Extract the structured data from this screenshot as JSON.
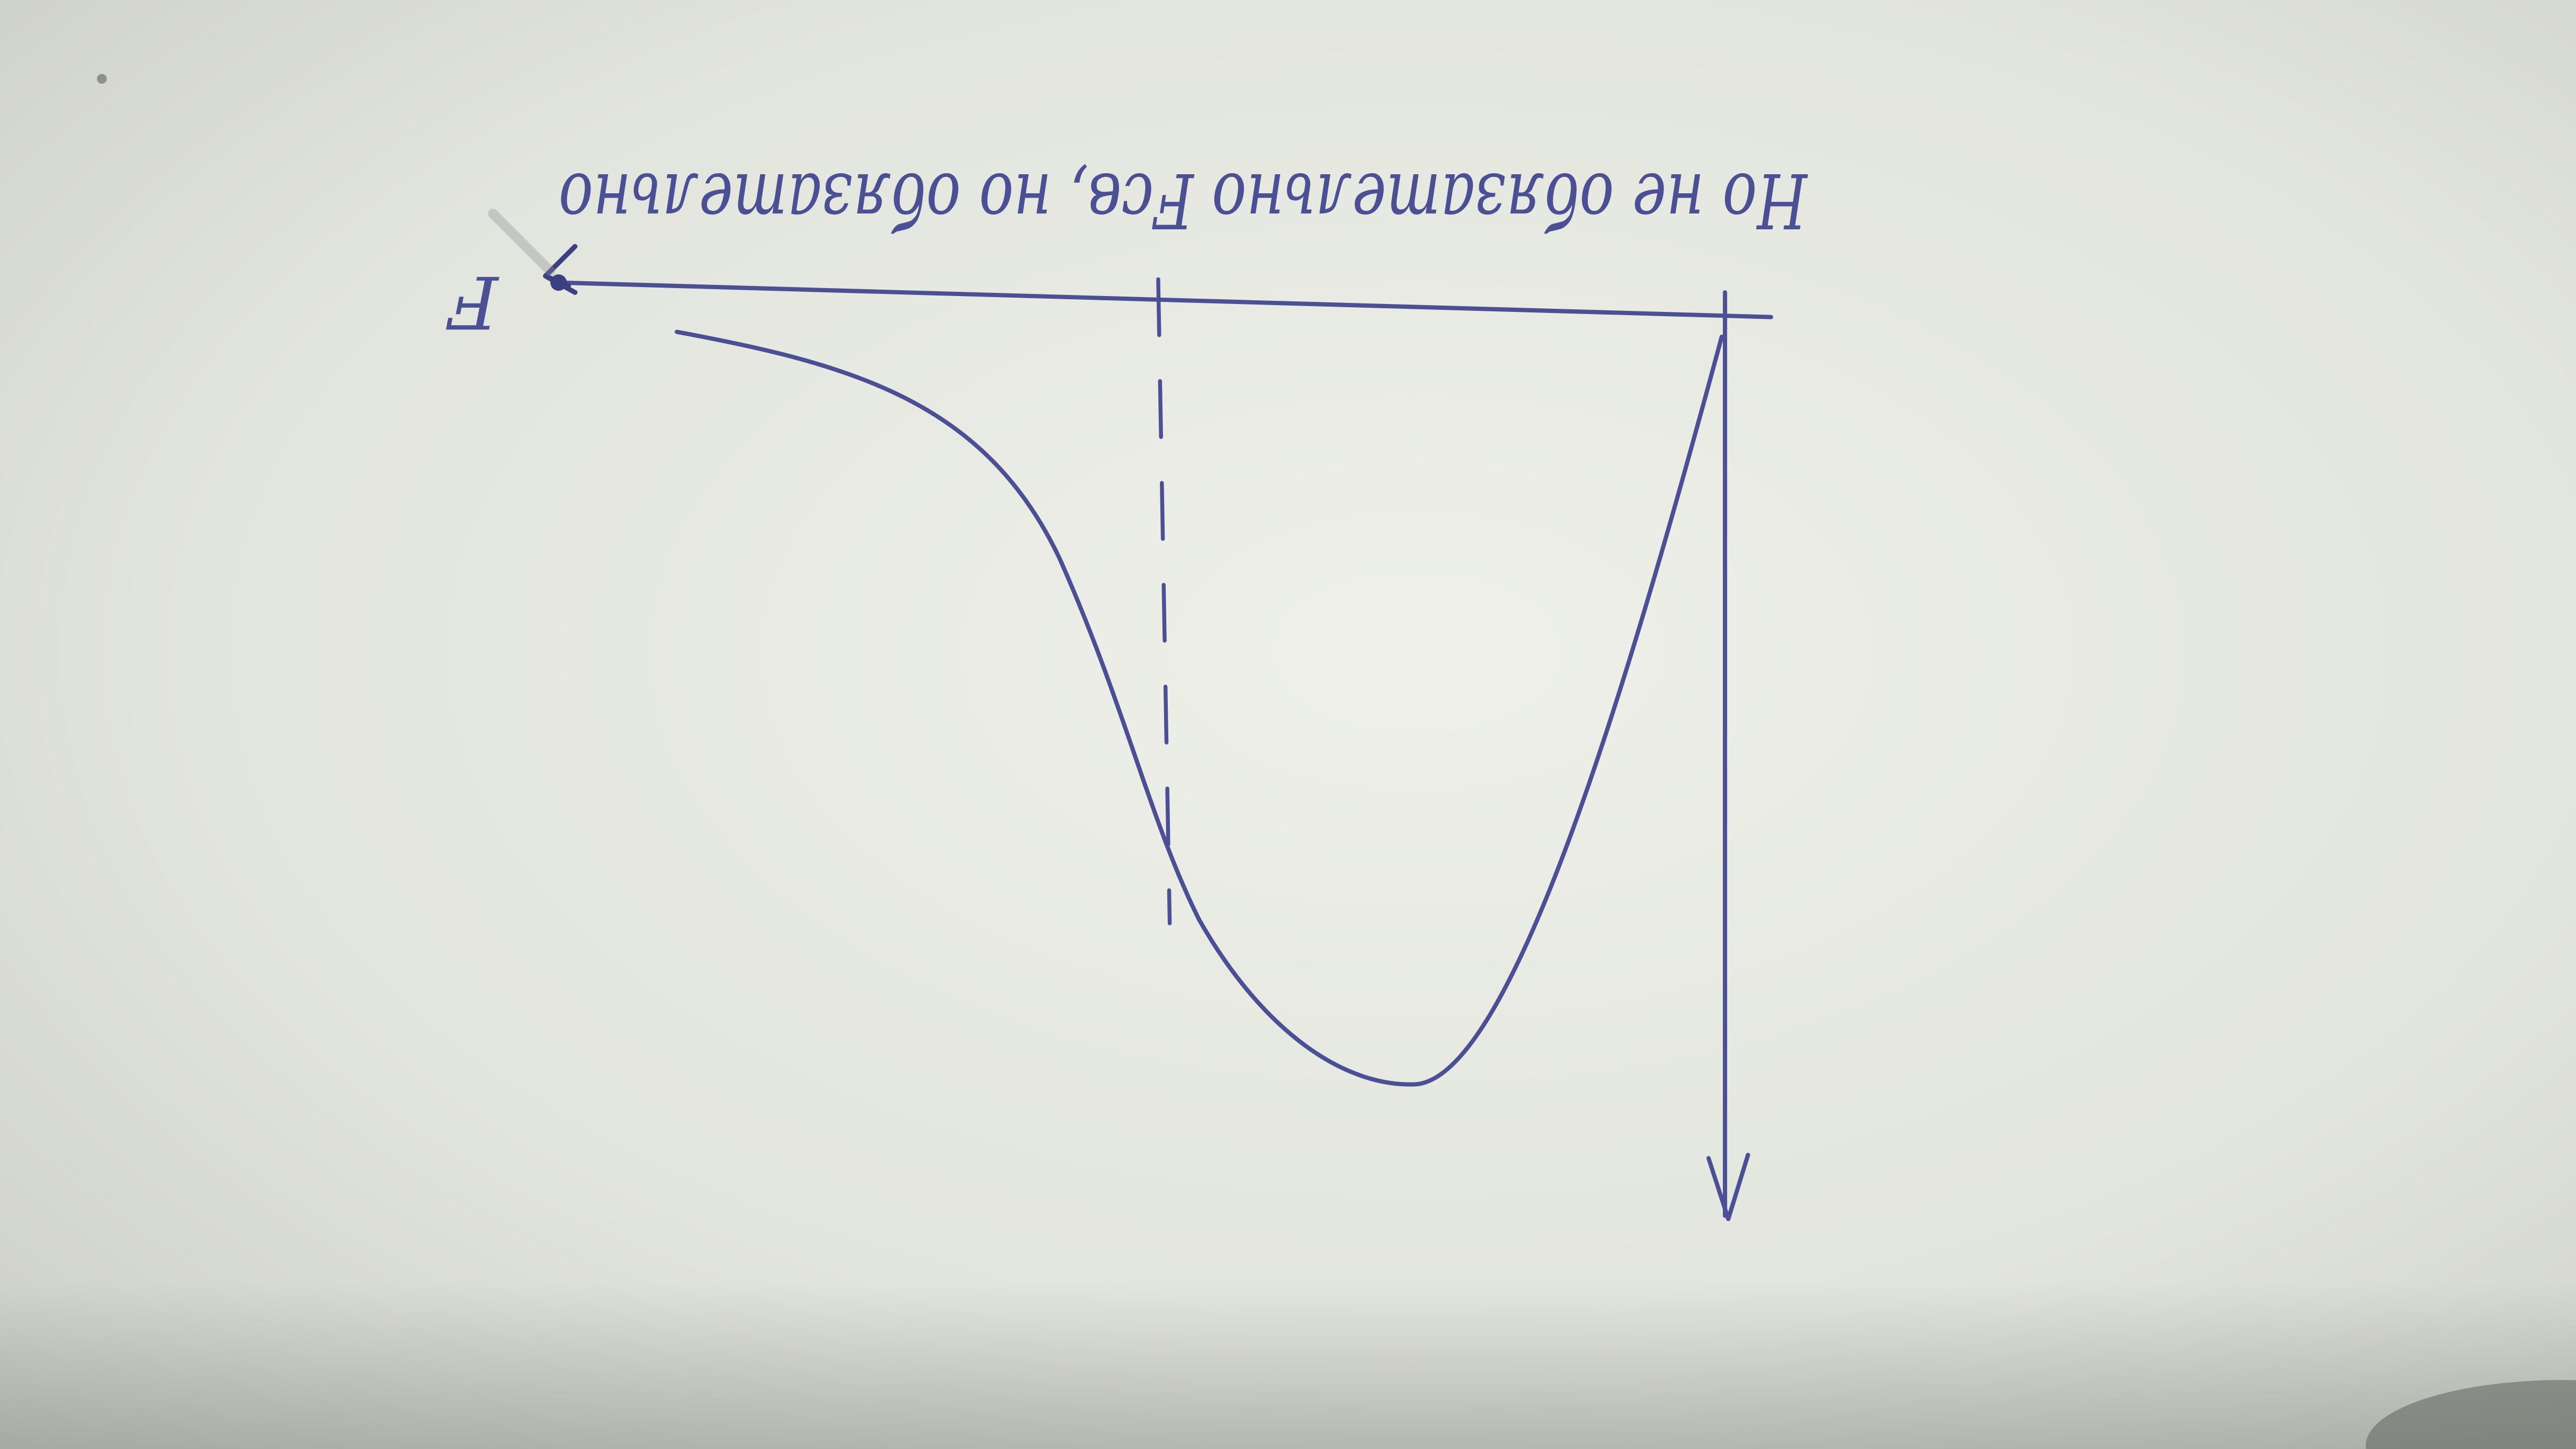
{
  "photo": {
    "subject": "hand-drawn sketch on paper, photographed upside down",
    "colors": {
      "paper_light": "#e9ebe4",
      "paper_mid": "#dcdfd7",
      "paper_edge": "#b9bcb4",
      "ink": "#4b4f94"
    }
  },
  "sketch": {
    "annotation": "Но не обязательно Fсв, но обязательно",
    "axis_label": "F"
  }
}
